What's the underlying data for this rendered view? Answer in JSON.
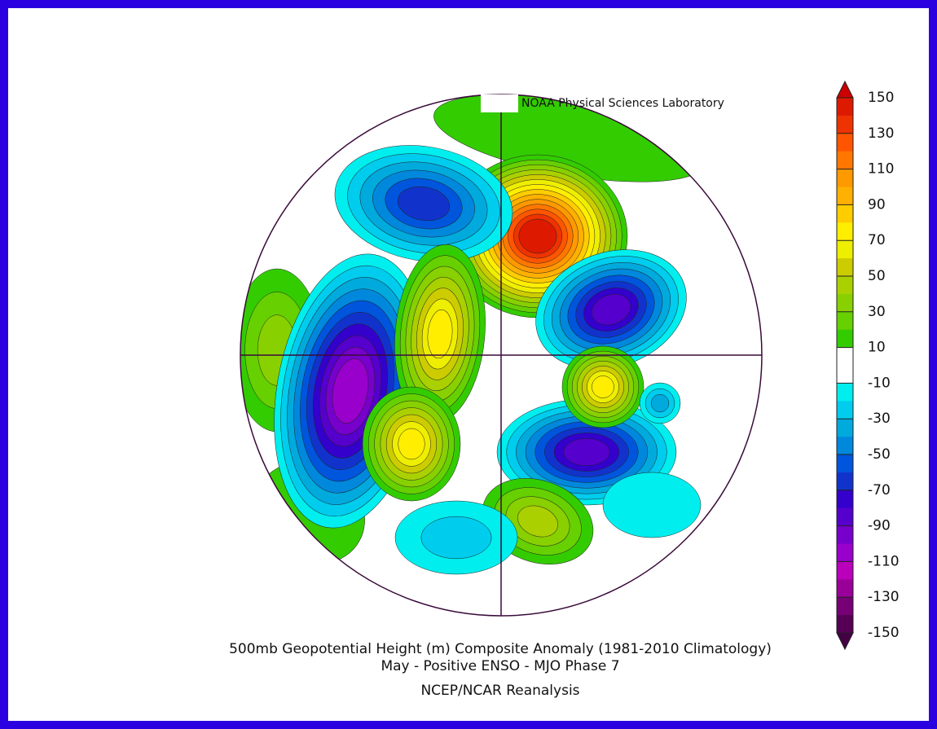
{
  "header": {
    "credit": "NOAA Physical Sciences Laboratory"
  },
  "footer": {
    "title": "500mb Geopotential Height (m) Composite Anomaly (1981-2010 Climatology)",
    "subtitle": "May - Positive ENSO - MJO Phase 7",
    "source": "NCEP/NCAR Reanalysis"
  },
  "colorbar": {
    "ticks": [
      150,
      130,
      110,
      90,
      70,
      50,
      30,
      10,
      -10,
      -30,
      -50,
      -70,
      -90,
      -110,
      -130,
      -150
    ],
    "colors": [
      "#dd1a00",
      "#ee3300",
      "#ff5500",
      "#ff7700",
      "#ff9900",
      "#ffb000",
      "#ffcc00",
      "#ffee00",
      "#eeee00",
      "#cccc00",
      "#aad000",
      "#88d000",
      "#66d000",
      "#33cc00",
      "#ffffff",
      "#ffffff",
      "#00eeee",
      "#00ccee",
      "#00aadd",
      "#0088dd",
      "#0055dd",
      "#1133cc",
      "#3300cc",
      "#5500cc",
      "#7700cc",
      "#9900cc",
      "#bb00bb",
      "#990099",
      "#770077",
      "#550055"
    ]
  }
}
